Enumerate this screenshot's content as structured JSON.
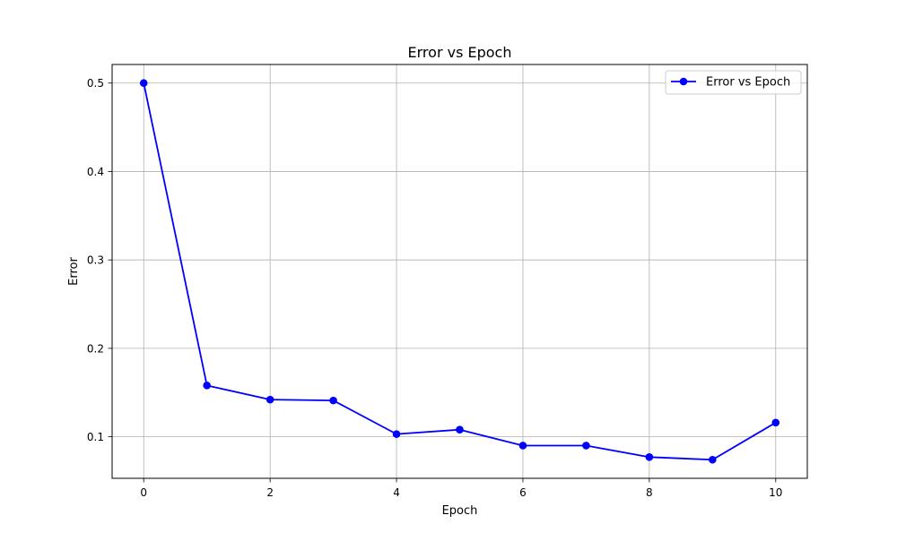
{
  "chart_data": {
    "type": "line",
    "title": "Error vs Epoch",
    "xlabel": "Epoch",
    "ylabel": "Error",
    "xlim": [
      -0.5,
      10.5
    ],
    "ylim": [
      0.053,
      0.521
    ],
    "xticks": [
      0,
      2,
      4,
      6,
      8,
      10
    ],
    "yticks": [
      0.1,
      0.2,
      0.3,
      0.4,
      0.5
    ],
    "ytick_labels": [
      "0.1",
      "0.2",
      "0.3",
      "0.4",
      "0.5"
    ],
    "xtick_labels": [
      "0",
      "2",
      "4",
      "6",
      "8",
      "10"
    ],
    "grid": true,
    "legend_position": "top-right",
    "series": [
      {
        "name": "Error vs Epoch",
        "color": "#0000ff",
        "marker": "circle",
        "x": [
          0,
          1,
          2,
          3,
          4,
          5,
          6,
          7,
          8,
          9,
          10
        ],
        "y": [
          0.5,
          0.158,
          0.142,
          0.141,
          0.103,
          0.108,
          0.09,
          0.09,
          0.077,
          0.074,
          0.116
        ]
      }
    ]
  }
}
